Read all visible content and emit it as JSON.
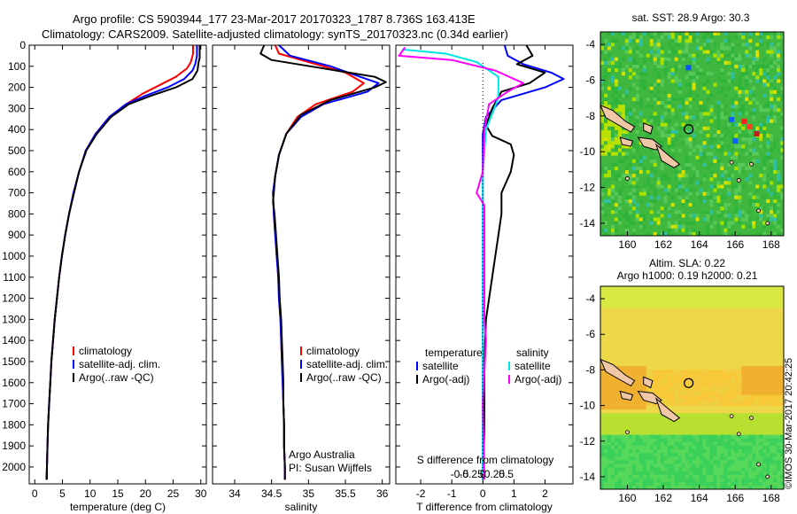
{
  "header": {
    "line1": "Argo profile: CS 5903944_177 23-Mar-2017 20170323_1787 8.736S 163.413E",
    "line2": "Climatology: CARS2009. Satellite-adjusted climatology: synTS_20170323.nc (0.34d earlier)"
  },
  "stamp": "©IMOS 30-Mar-2017 20:42:25",
  "colors": {
    "clim": "#ff0000",
    "sat": "#0000ff",
    "argo": "#000000",
    "sal_sat": "#00e5e5",
    "sal_argo": "#ff00ff"
  },
  "chart_data": [
    {
      "type": "line",
      "name": "temperature-profile",
      "xlabel": "temperature (deg C)",
      "ylabel": "",
      "xlim": [
        -1,
        31
      ],
      "ylim": [
        2080,
        0
      ],
      "xticks": [
        0,
        5,
        10,
        15,
        20,
        25,
        30
      ],
      "yticks": [
        0,
        100,
        200,
        300,
        400,
        500,
        600,
        700,
        800,
        900,
        1000,
        1100,
        1200,
        1300,
        1400,
        1500,
        1600,
        1700,
        1800,
        1900,
        2000
      ],
      "legend": [
        "climatology",
        "satellite-adj. clim.",
        "Argo(..raw -QC)"
      ],
      "legend_position": "bottom-middle",
      "series": [
        {
          "name": "climatology",
          "color": "#ff0000",
          "points": [
            [
              28.6,
              0
            ],
            [
              28.6,
              40
            ],
            [
              28.2,
              80
            ],
            [
              27.5,
              110
            ],
            [
              25.5,
              150
            ],
            [
              22.5,
              190
            ],
            [
              19.5,
              230
            ],
            [
              16.5,
              280
            ],
            [
              13.5,
              340
            ],
            [
              11.0,
              420
            ],
            [
              9.2,
              500
            ],
            [
              8.0,
              600
            ],
            [
              7.0,
              700
            ],
            [
              6.2,
              800
            ],
            [
              5.5,
              900
            ],
            [
              4.9,
              1000
            ],
            [
              4.4,
              1100
            ],
            [
              4.0,
              1200
            ],
            [
              3.6,
              1300
            ],
            [
              3.3,
              1400
            ],
            [
              3.0,
              1500
            ],
            [
              2.8,
              1600
            ],
            [
              2.6,
              1700
            ],
            [
              2.4,
              1800
            ],
            [
              2.3,
              1900
            ],
            [
              2.2,
              2000
            ],
            [
              2.1,
              2060
            ]
          ]
        },
        {
          "name": "satellite-adj. clim.",
          "color": "#0000ff",
          "points": [
            [
              29.3,
              0
            ],
            [
              29.3,
              50
            ],
            [
              29.0,
              90
            ],
            [
              28.5,
              120
            ],
            [
              27.0,
              160
            ],
            [
              24.0,
              200
            ],
            [
              20.0,
              240
            ],
            [
              16.5,
              280
            ],
            [
              13.5,
              340
            ],
            [
              11.0,
              420
            ],
            [
              9.2,
              500
            ],
            [
              8.0,
              600
            ],
            [
              7.0,
              700
            ],
            [
              6.2,
              800
            ],
            [
              5.5,
              900
            ],
            [
              4.9,
              1000
            ],
            [
              4.4,
              1100
            ],
            [
              4.0,
              1200
            ],
            [
              3.6,
              1300
            ],
            [
              3.3,
              1400
            ],
            [
              3.0,
              1500
            ],
            [
              2.8,
              1600
            ],
            [
              2.6,
              1700
            ],
            [
              2.4,
              1800
            ],
            [
              2.3,
              1900
            ],
            [
              2.2,
              2000
            ],
            [
              2.1,
              2060
            ]
          ]
        },
        {
          "name": "Argo(..raw -QC)",
          "color": "#000000",
          "points": [
            [
              29.8,
              0
            ],
            [
              29.8,
              60
            ],
            [
              29.6,
              80
            ],
            [
              29.4,
              120
            ],
            [
              28.5,
              160
            ],
            [
              25.5,
              200
            ],
            [
              21.0,
              240
            ],
            [
              17.0,
              280
            ],
            [
              13.8,
              340
            ],
            [
              11.2,
              420
            ],
            [
              9.3,
              500
            ],
            [
              8.0,
              600
            ],
            [
              7.1,
              700
            ],
            [
              6.2,
              800
            ],
            [
              5.5,
              900
            ],
            [
              4.9,
              1000
            ],
            [
              4.4,
              1100
            ],
            [
              4.0,
              1200
            ],
            [
              3.6,
              1300
            ],
            [
              3.3,
              1400
            ],
            [
              3.0,
              1500
            ],
            [
              2.8,
              1600
            ],
            [
              2.6,
              1700
            ],
            [
              2.4,
              1800
            ],
            [
              2.3,
              1900
            ],
            [
              2.2,
              2000
            ],
            [
              2.2,
              2060
            ]
          ]
        }
      ]
    },
    {
      "type": "line",
      "name": "salinity-profile",
      "xlabel": "salinity",
      "xlim": [
        33.7,
        36.1
      ],
      "ylim": [
        2080,
        0
      ],
      "xticks": [
        34,
        34.5,
        35,
        35.5,
        36
      ],
      "legend": [
        "climatology",
        "satellite-adj. clim.",
        "Argo(..raw -QC)"
      ],
      "legend_position": "bottom-middle",
      "annotation": [
        "Argo Australia",
        "PI: Susan Wijffels"
      ],
      "series": [
        {
          "name": "climatology",
          "color": "#ff0000",
          "points": [
            [
              34.55,
              0
            ],
            [
              34.6,
              40
            ],
            [
              35.0,
              80
            ],
            [
              35.5,
              130
            ],
            [
              35.75,
              180
            ],
            [
              35.6,
              220
            ],
            [
              35.1,
              280
            ],
            [
              34.85,
              340
            ],
            [
              34.7,
              420
            ],
            [
              34.6,
              520
            ],
            [
              34.55,
              620
            ],
            [
              34.52,
              700
            ],
            [
              34.53,
              800
            ],
            [
              34.55,
              900
            ],
            [
              34.57,
              1000
            ],
            [
              34.59,
              1100
            ],
            [
              34.6,
              1200
            ],
            [
              34.62,
              1300
            ],
            [
              34.63,
              1400
            ],
            [
              34.64,
              1500
            ],
            [
              34.65,
              1600
            ],
            [
              34.66,
              1700
            ],
            [
              34.67,
              1800
            ],
            [
              34.67,
              1900
            ],
            [
              34.68,
              2000
            ],
            [
              34.68,
              2060
            ]
          ]
        },
        {
          "name": "satellite-adj. clim.",
          "color": "#0000ff",
          "points": [
            [
              34.6,
              0
            ],
            [
              34.75,
              50
            ],
            [
              35.3,
              100
            ],
            [
              35.7,
              150
            ],
            [
              35.95,
              180
            ],
            [
              35.8,
              220
            ],
            [
              35.2,
              280
            ],
            [
              34.9,
              340
            ],
            [
              34.7,
              420
            ],
            [
              34.6,
              520
            ],
            [
              34.55,
              620
            ],
            [
              34.52,
              700
            ],
            [
              34.53,
              800
            ],
            [
              34.55,
              900
            ],
            [
              34.57,
              1000
            ],
            [
              34.59,
              1100
            ],
            [
              34.6,
              1200
            ],
            [
              34.62,
              1300
            ],
            [
              34.63,
              1400
            ],
            [
              34.64,
              1500
            ],
            [
              34.65,
              1600
            ],
            [
              34.66,
              1700
            ],
            [
              34.67,
              1800
            ],
            [
              34.67,
              1900
            ],
            [
              34.68,
              2000
            ],
            [
              34.68,
              2060
            ]
          ]
        },
        {
          "name": "Argo(..raw -QC)",
          "color": "#000000",
          "points": [
            [
              34.4,
              0
            ],
            [
              34.35,
              40
            ],
            [
              34.5,
              70
            ],
            [
              35.2,
              110
            ],
            [
              35.9,
              150
            ],
            [
              36.05,
              175
            ],
            [
              35.9,
              200
            ],
            [
              35.3,
              260
            ],
            [
              34.9,
              330
            ],
            [
              34.7,
              420
            ],
            [
              34.6,
              520
            ],
            [
              34.55,
              620
            ],
            [
              34.53,
              700
            ],
            [
              34.52,
              740
            ],
            [
              34.54,
              800
            ],
            [
              34.56,
              900
            ],
            [
              34.58,
              1000
            ],
            [
              34.6,
              1100
            ],
            [
              34.61,
              1200
            ],
            [
              34.63,
              1300
            ],
            [
              34.64,
              1400
            ],
            [
              34.65,
              1500
            ],
            [
              34.66,
              1600
            ],
            [
              34.66,
              1700
            ],
            [
              34.67,
              1800
            ],
            [
              34.67,
              1900
            ],
            [
              34.68,
              2000
            ],
            [
              34.68,
              2060
            ]
          ]
        }
      ]
    },
    {
      "type": "line",
      "name": "difference-profile",
      "xlabel": "T difference from climatology",
      "xlabel_top": "S difference from climatology",
      "xlim": [
        -2.8,
        2.9
      ],
      "ylim": [
        2080,
        0
      ],
      "xticks": [
        -2,
        -1,
        0,
        1,
        2
      ],
      "top_ticks": [
        -0.5,
        -0.25,
        0,
        0.25,
        0.5
      ],
      "legend_left": [
        "temperature",
        "satellite",
        "Argo(-adj)"
      ],
      "legend_right": [
        "salinity",
        "satellite",
        "Argo(-adj)"
      ],
      "legend_position": "bottom-middle",
      "series": [
        {
          "name": "T satellite",
          "color": "#0000ff",
          "points": [
            [
              0.7,
              0
            ],
            [
              0.8,
              50
            ],
            [
              1.3,
              90
            ],
            [
              2.2,
              130
            ],
            [
              2.6,
              160
            ],
            [
              2.0,
              200
            ],
            [
              0.6,
              260
            ],
            [
              0.1,
              340
            ],
            [
              0.0,
              420
            ],
            [
              0.0,
              2060
            ]
          ]
        },
        {
          "name": "T Argo(-adj)",
          "color": "#000000",
          "points": [
            [
              1.4,
              0
            ],
            [
              1.6,
              50
            ],
            [
              1.1,
              90
            ],
            [
              2.0,
              130
            ],
            [
              1.5,
              180
            ],
            [
              0.6,
              220
            ],
            [
              0.3,
              300
            ],
            [
              0.1,
              380
            ],
            [
              0.3,
              430
            ],
            [
              0.9,
              470
            ],
            [
              1.0,
              520
            ],
            [
              0.9,
              600
            ],
            [
              0.6,
              700
            ],
            [
              0.6,
              800
            ],
            [
              0.5,
              900
            ],
            [
              0.4,
              1000
            ],
            [
              0.3,
              1100
            ],
            [
              0.2,
              1200
            ],
            [
              0.1,
              1300
            ],
            [
              0.05,
              1500
            ],
            [
              0.05,
              1800
            ],
            [
              0.0,
              2060
            ]
          ]
        },
        {
          "name": "S satellite",
          "color": "#00e5e5",
          "points": [
            [
              -2.6,
              20
            ],
            [
              -1.2,
              40
            ],
            [
              -0.2,
              80
            ],
            [
              0.5,
              150
            ],
            [
              0.5,
              250
            ],
            [
              0.1,
              400
            ],
            [
              0.0,
              600
            ],
            [
              0.0,
              2060
            ]
          ]
        },
        {
          "name": "S Argo(-adj)",
          "color": "#ff00ff",
          "points": [
            [
              -2.5,
              10
            ],
            [
              -2.7,
              50
            ],
            [
              -1.0,
              70
            ],
            [
              0.4,
              120
            ],
            [
              1.3,
              180
            ],
            [
              0.8,
              220
            ],
            [
              0.2,
              280
            ],
            [
              0.05,
              400
            ],
            [
              0.0,
              600
            ],
            [
              -0.2,
              700
            ],
            [
              0.05,
              760
            ],
            [
              0.05,
              900
            ],
            [
              0.05,
              1300
            ],
            [
              0.1,
              1400
            ],
            [
              0.0,
              1700
            ],
            [
              0.05,
              2060
            ]
          ]
        }
      ]
    }
  ],
  "maps": {
    "sst": {
      "title": "sat. SST: 28.9 Argo: 30.3",
      "xticks": [
        160,
        162,
        164,
        166,
        168
      ],
      "yticks": [
        -4,
        -6,
        -8,
        -10,
        -12,
        -14
      ],
      "xlim": [
        158.5,
        168.7
      ],
      "ylim": [
        -14.7,
        -3.3
      ],
      "argo": [
        163.41,
        -8.74
      ]
    },
    "sla": {
      "title1": "Altim. SLA: 0.22",
      "title2": "Argo h1000: 0.19 h2000: 0.21",
      "xticks": [
        160,
        162,
        164,
        166,
        168
      ],
      "yticks": [
        -4,
        -6,
        -8,
        -10,
        -12,
        -14
      ],
      "xlim": [
        158.5,
        168.7
      ],
      "ylim": [
        -14.7,
        -3.3
      ],
      "argo": [
        163.41,
        -8.74
      ]
    }
  }
}
